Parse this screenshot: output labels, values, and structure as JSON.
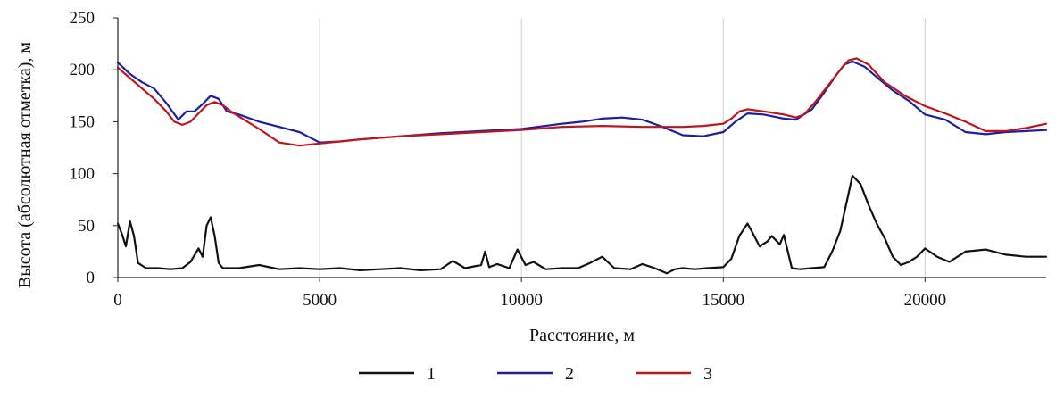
{
  "chart_data": {
    "type": "line",
    "title": "",
    "xlabel": "Расстояние, м",
    "ylabel": "Высота (абсолютная отметка), м",
    "xlim": [
      0,
      23000
    ],
    "ylim": [
      0,
      250
    ],
    "xticks": [
      0,
      5000,
      10000,
      15000,
      20000
    ],
    "yticks": [
      0,
      50,
      100,
      150,
      200,
      250
    ],
    "xtick_labels": [
      "0",
      "5000",
      "10000",
      "15000",
      "20000"
    ],
    "ytick_labels": [
      "0",
      "50",
      "100",
      "150",
      "200",
      "250"
    ],
    "grid": "vertical",
    "legend_position": "bottom-center",
    "series": [
      {
        "name": "1",
        "color": "#111111",
        "x": [
          0,
          100,
          200,
          300,
          400,
          500,
          700,
          1000,
          1300,
          1600,
          1800,
          2000,
          2100,
          2200,
          2300,
          2400,
          2500,
          2600,
          3000,
          3500,
          4000,
          4500,
          5000,
          5500,
          6000,
          6500,
          7000,
          7500,
          8000,
          8300,
          8600,
          9000,
          9100,
          9200,
          9400,
          9700,
          9900,
          10100,
          10300,
          10600,
          11000,
          11400,
          11700,
          12000,
          12300,
          12700,
          13000,
          13300,
          13600,
          13800,
          14000,
          14300,
          14600,
          15000,
          15200,
          15400,
          15600,
          15700,
          15900,
          16100,
          16200,
          16400,
          16500,
          16600,
          16700,
          16900,
          17200,
          17500,
          17700,
          17900,
          18100,
          18200,
          18400,
          18600,
          18800,
          19000,
          19200,
          19400,
          19600,
          19800,
          20000,
          20300,
          20600,
          21000,
          21500,
          22000,
          22500,
          23000
        ],
        "values": [
          52,
          42,
          30,
          54,
          40,
          14,
          9,
          9,
          8,
          9,
          15,
          28,
          20,
          50,
          58,
          40,
          14,
          9,
          9,
          12,
          8,
          9,
          8,
          9,
          7,
          8,
          9,
          7,
          8,
          16,
          9,
          12,
          25,
          10,
          13,
          9,
          27,
          12,
          15,
          8,
          9,
          9,
          14,
          20,
          9,
          8,
          13,
          9,
          4,
          8,
          9,
          8,
          9,
          10,
          18,
          40,
          52,
          45,
          30,
          35,
          40,
          32,
          41,
          25,
          9,
          8,
          9,
          10,
          25,
          45,
          80,
          98,
          90,
          70,
          52,
          38,
          20,
          12,
          15,
          20,
          28,
          20,
          15,
          25,
          27,
          22,
          20,
          20
        ]
      },
      {
        "name": "2",
        "color": "#1b1fa0",
        "x": [
          0,
          300,
          600,
          900,
          1200,
          1500,
          1700,
          1900,
          2100,
          2300,
          2500,
          2700,
          3000,
          3500,
          4000,
          4500,
          5000,
          5500,
          6000,
          7000,
          8000,
          9000,
          10000,
          11000,
          11500,
          12000,
          12500,
          13000,
          13500,
          14000,
          14500,
          15000,
          15300,
          15600,
          16000,
          16500,
          16800,
          17200,
          17500,
          17800,
          18000,
          18200,
          18500,
          18800,
          19200,
          19600,
          20000,
          20500,
          21000,
          21500,
          22000,
          22500,
          23000
        ],
        "values": [
          207,
          196,
          188,
          182,
          168,
          152,
          160,
          160,
          167,
          175,
          172,
          160,
          157,
          150,
          145,
          140,
          130,
          131,
          133,
          136,
          139,
          141,
          143,
          148,
          150,
          153,
          154,
          152,
          145,
          137,
          136,
          140,
          150,
          158,
          157,
          153,
          152,
          162,
          178,
          195,
          205,
          208,
          203,
          193,
          180,
          170,
          157,
          152,
          140,
          138,
          140,
          141,
          142
        ]
      },
      {
        "name": "3",
        "color": "#c0141c",
        "x": [
          0,
          300,
          600,
          900,
          1200,
          1400,
          1600,
          1800,
          2000,
          2200,
          2400,
          2600,
          2800,
          3000,
          3500,
          4000,
          4500,
          5000,
          5500,
          6000,
          7000,
          8000,
          9000,
          10000,
          11000,
          12000,
          13000,
          14000,
          14500,
          15000,
          15200,
          15400,
          15600,
          16000,
          16500,
          16800,
          17000,
          17300,
          17600,
          17900,
          18100,
          18300,
          18600,
          19000,
          19500,
          20000,
          20500,
          21000,
          21500,
          22000,
          22500,
          23000
        ],
        "values": [
          202,
          192,
          182,
          172,
          160,
          150,
          147,
          150,
          158,
          166,
          169,
          166,
          160,
          155,
          143,
          130,
          127,
          129,
          131,
          133,
          136,
          138,
          140,
          142,
          145,
          146,
          145,
          145,
          146,
          148,
          153,
          160,
          162,
          160,
          157,
          154,
          157,
          170,
          185,
          200,
          209,
          211,
          205,
          188,
          175,
          165,
          158,
          150,
          141,
          141,
          144,
          148
        ]
      }
    ]
  }
}
